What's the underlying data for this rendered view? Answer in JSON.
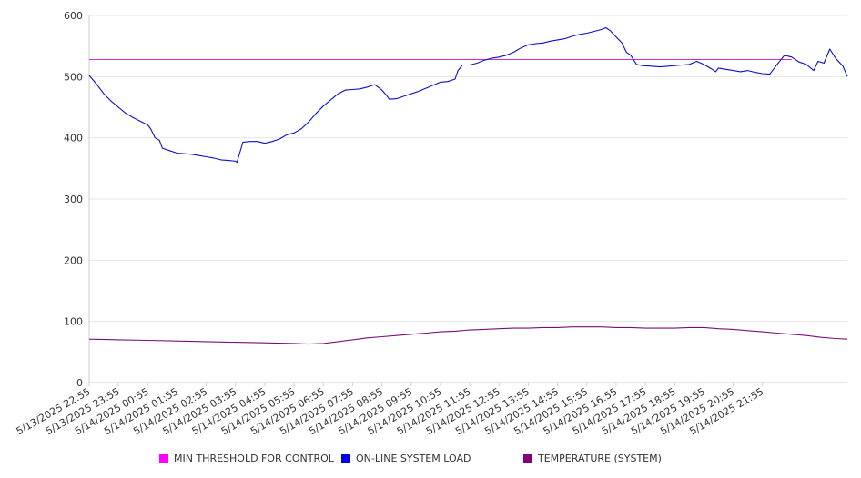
{
  "chart_data": {
    "type": "line",
    "title": "",
    "xlabel": "",
    "ylabel": "",
    "ylim": [
      0,
      600
    ],
    "yticks": [
      "0",
      "100",
      "200",
      "300",
      "400",
      "500",
      "600"
    ],
    "xticks": [
      "5/13/2025 22:55",
      "5/13/2025 23:55",
      "5/14/2025 00:55",
      "5/14/2025 01:55",
      "5/14/2025 02:55",
      "5/14/2025 03:55",
      "5/14/2025 04:55",
      "5/14/2025 05:55",
      "5/14/2025 06:55",
      "5/14/2025 07:55",
      "5/14/2025 08:55",
      "5/14/2025 09:55",
      "5/14/2025 10:55",
      "5/14/2025 11:55",
      "5/14/2025 12:55",
      "5/14/2025 13:55",
      "5/14/2025 14:55",
      "5/14/2025 15:55",
      "5/14/2025 16:55",
      "5/14/2025 17:55",
      "5/14/2025 18:55",
      "5/14/2025 19:55",
      "5/14/2025 20:55",
      "5/14/2025 21:55"
    ],
    "xrange_hours": [
      0,
      24
    ],
    "grid": true,
    "legend_position": "bottom",
    "series": [
      {
        "name": "MIN THRESHOLD FOR CONTROL",
        "color": "#cc33cc",
        "points": [
          [
            0,
            528
          ],
          [
            24,
            528
          ]
        ]
      },
      {
        "name": "ON-LINE SYSTEM LOAD",
        "color": "#0a10c8",
        "points": [
          [
            0,
            502
          ],
          [
            0.25,
            488
          ],
          [
            0.5,
            472
          ],
          [
            0.75,
            460
          ],
          [
            1,
            450
          ],
          [
            1.25,
            440
          ],
          [
            1.5,
            433
          ],
          [
            1.75,
            427
          ],
          [
            2,
            421
          ],
          [
            2.1,
            415
          ],
          [
            2.25,
            400
          ],
          [
            2.4,
            396
          ],
          [
            2.5,
            383
          ],
          [
            2.75,
            379
          ],
          [
            3,
            375
          ],
          [
            3.25,
            374
          ],
          [
            3.5,
            373
          ],
          [
            3.75,
            371
          ],
          [
            4,
            369
          ],
          [
            4.25,
            367
          ],
          [
            4.5,
            364
          ],
          [
            4.75,
            363
          ],
          [
            5,
            362
          ],
          [
            5.05,
            360
          ],
          [
            5.25,
            393
          ],
          [
            5.5,
            394
          ],
          [
            5.75,
            394
          ],
          [
            6,
            391
          ],
          [
            6.25,
            394
          ],
          [
            6.5,
            398
          ],
          [
            6.75,
            405
          ],
          [
            7,
            408
          ],
          [
            7.25,
            415
          ],
          [
            7.5,
            426
          ],
          [
            7.75,
            440
          ],
          [
            8,
            452
          ],
          [
            8.25,
            462
          ],
          [
            8.5,
            472
          ],
          [
            8.75,
            478
          ],
          [
            9,
            479
          ],
          [
            9.25,
            480
          ],
          [
            9.5,
            483
          ],
          [
            9.75,
            487
          ],
          [
            10,
            478
          ],
          [
            10.15,
            470
          ],
          [
            10.25,
            463
          ],
          [
            10.5,
            464
          ],
          [
            10.75,
            468
          ],
          [
            11,
            472
          ],
          [
            11.25,
            476
          ],
          [
            11.5,
            481
          ],
          [
            11.75,
            486
          ],
          [
            12,
            491
          ],
          [
            12.25,
            492
          ],
          [
            12.5,
            496
          ],
          [
            12.6,
            510
          ],
          [
            12.75,
            519
          ],
          [
            13,
            519
          ],
          [
            13.25,
            522
          ],
          [
            13.5,
            527
          ],
          [
            13.75,
            530
          ],
          [
            14,
            532
          ],
          [
            14.25,
            535
          ],
          [
            14.5,
            540
          ],
          [
            14.75,
            547
          ],
          [
            15,
            552
          ],
          [
            15.25,
            554
          ],
          [
            15.5,
            555
          ],
          [
            15.75,
            558
          ],
          [
            16,
            560
          ],
          [
            16.25,
            562
          ],
          [
            16.5,
            566
          ],
          [
            16.75,
            569
          ],
          [
            17,
            571
          ],
          [
            17.25,
            574
          ],
          [
            17.5,
            577
          ],
          [
            17.65,
            580
          ],
          [
            17.8,
            575
          ],
          [
            18,
            565
          ],
          [
            18.2,
            555
          ],
          [
            18.35,
            540
          ],
          [
            18.5,
            535
          ],
          [
            18.7,
            520
          ],
          [
            18.9,
            518
          ],
          [
            19.25,
            517
          ],
          [
            19.5,
            516
          ],
          [
            19.75,
            517
          ],
          [
            20,
            518
          ],
          [
            20.25,
            519
          ],
          [
            20.5,
            520
          ],
          [
            20.75,
            525
          ],
          [
            21,
            520
          ],
          [
            21.25,
            513
          ],
          [
            21.4,
            508
          ],
          [
            21.5,
            514
          ],
          [
            21.75,
            512
          ],
          [
            22,
            510
          ],
          [
            22.25,
            508
          ],
          [
            22.5,
            510
          ],
          [
            22.75,
            507
          ],
          [
            23,
            505
          ],
          [
            23.25,
            504
          ],
          [
            23.5,
            520
          ],
          [
            23.75,
            535
          ],
          [
            24,
            532
          ],
          [
            24.25,
            524
          ],
          [
            24.5,
            520
          ],
          [
            24.75,
            510
          ],
          [
            24.9,
            525
          ],
          [
            25.1,
            522
          ],
          [
            25.3,
            545
          ],
          [
            25.5,
            530
          ],
          [
            25.75,
            517
          ],
          [
            25.9,
            500
          ]
        ]
      },
      {
        "name": "TEMPERATURE (SYSTEM)",
        "color": "#7a0f7a",
        "points": [
          [
            0,
            71
          ],
          [
            1,
            70
          ],
          [
            2,
            69
          ],
          [
            3,
            68
          ],
          [
            4,
            67
          ],
          [
            5,
            66
          ],
          [
            6,
            65
          ],
          [
            7,
            64
          ],
          [
            7.5,
            63
          ],
          [
            8,
            64
          ],
          [
            8.5,
            67
          ],
          [
            9,
            70
          ],
          [
            9.5,
            73
          ],
          [
            10,
            75
          ],
          [
            10.5,
            77
          ],
          [
            11,
            79
          ],
          [
            11.5,
            81
          ],
          [
            12,
            83
          ],
          [
            12.5,
            84
          ],
          [
            13,
            86
          ],
          [
            13.5,
            87
          ],
          [
            14,
            88
          ],
          [
            14.5,
            89
          ],
          [
            15,
            89
          ],
          [
            15.5,
            90
          ],
          [
            16,
            90
          ],
          [
            16.5,
            91
          ],
          [
            17,
            91
          ],
          [
            17.5,
            91
          ],
          [
            18,
            90
          ],
          [
            18.5,
            90
          ],
          [
            19,
            89
          ],
          [
            19.5,
            89
          ],
          [
            20,
            89
          ],
          [
            20.5,
            90
          ],
          [
            21,
            90
          ],
          [
            21.5,
            88
          ],
          [
            22,
            87
          ],
          [
            22.5,
            85
          ],
          [
            23,
            83
          ],
          [
            23.5,
            81
          ],
          [
            24,
            79
          ],
          [
            24.5,
            77
          ],
          [
            25,
            74
          ],
          [
            25.5,
            72
          ],
          [
            25.9,
            71
          ]
        ]
      }
    ]
  }
}
